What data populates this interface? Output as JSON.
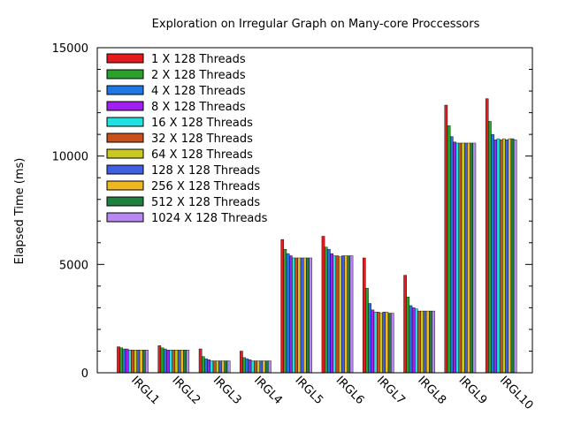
{
  "chart_data": {
    "type": "bar",
    "title": "Exploration on Irregular Graph on Many-core Proccessors",
    "xlabel": "",
    "ylabel": "Elapsed Time (ms)",
    "ylim": [
      0,
      15000
    ],
    "yticks": [
      0,
      5000,
      10000,
      15000
    ],
    "grid": false,
    "legend_position": "top-left",
    "categories": [
      "IRGL1",
      "IRGL2",
      "IRGL3",
      "IRGL4",
      "IRGL5",
      "IRGL6",
      "IRGL7",
      "IRGL8",
      "IRGL9",
      "IRGL10"
    ],
    "series": [
      {
        "name": "1 X 128 Threads",
        "color": "#e41a1c",
        "values": [
          1200,
          1250,
          1100,
          1000,
          6150,
          6300,
          5300,
          4500,
          12350,
          12650
        ]
      },
      {
        "name": "2 X 128 Threads",
        "color": "#2ca02c",
        "values": [
          1150,
          1150,
          750,
          700,
          5700,
          5800,
          3900,
          3500,
          11400,
          11600
        ]
      },
      {
        "name": "4 X 128 Threads",
        "color": "#1f77e4",
        "values": [
          1100,
          1100,
          650,
          650,
          5500,
          5700,
          3200,
          3100,
          10900,
          11000
        ]
      },
      {
        "name": "8 X 128 Threads",
        "color": "#a020f0",
        "values": [
          1100,
          1050,
          600,
          600,
          5400,
          5500,
          2900,
          3000,
          10650,
          10750
        ]
      },
      {
        "name": "16 X 128 Threads",
        "color": "#20e0e0",
        "values": [
          1050,
          1050,
          550,
          550,
          5300,
          5400,
          2800,
          2950,
          10600,
          10800
        ]
      },
      {
        "name": "32 X 128 Threads",
        "color": "#c8501c",
        "values": [
          1050,
          1050,
          550,
          550,
          5300,
          5400,
          2800,
          2850,
          10600,
          10750
        ]
      },
      {
        "name": "64 X 128 Threads",
        "color": "#c8c820",
        "values": [
          1050,
          1050,
          550,
          550,
          5300,
          5350,
          2750,
          2850,
          10600,
          10800
        ]
      },
      {
        "name": "128 X 128 Threads",
        "color": "#4060e0",
        "values": [
          1050,
          1050,
          550,
          550,
          5300,
          5400,
          2800,
          2850,
          10600,
          10750
        ]
      },
      {
        "name": "256 X 128 Threads",
        "color": "#f0b820",
        "values": [
          1050,
          1050,
          550,
          550,
          5300,
          5400,
          2800,
          2850,
          10600,
          10800
        ]
      },
      {
        "name": "512 X 128 Threads",
        "color": "#208040",
        "values": [
          1050,
          1050,
          550,
          550,
          5300,
          5400,
          2750,
          2850,
          10600,
          10800
        ]
      },
      {
        "name": "1024 X 128 Threads",
        "color": "#b888f0",
        "values": [
          1050,
          1050,
          550,
          550,
          5300,
          5400,
          2750,
          2850,
          10600,
          10750
        ]
      }
    ]
  }
}
